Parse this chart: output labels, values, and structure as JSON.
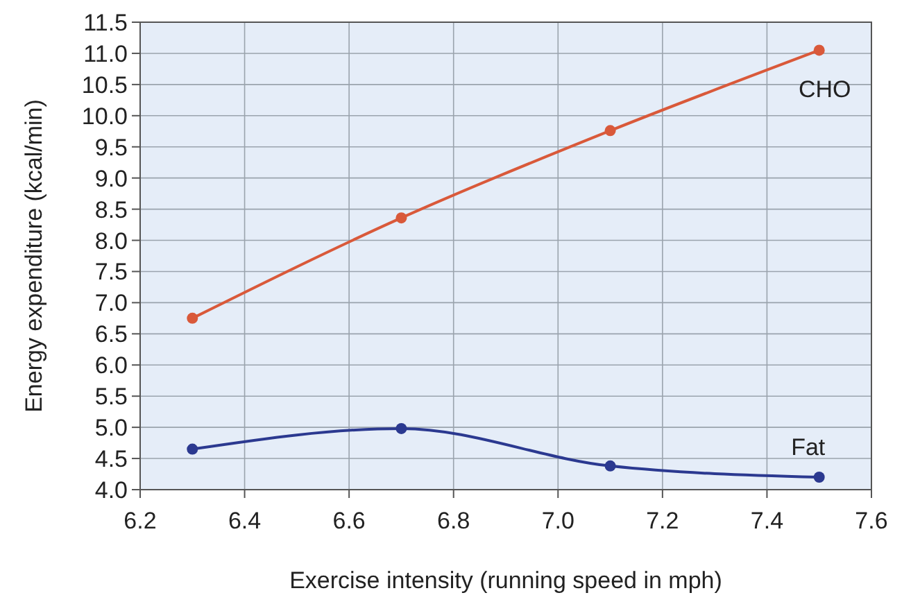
{
  "chart_data": {
    "type": "line",
    "xlabel": "Exercise intensity (running speed in mph)",
    "ylabel": "Energy expenditure (kcal/min)",
    "x": [
      6.3,
      6.7,
      7.1,
      7.5
    ],
    "series": [
      {
        "name": "CHO",
        "color": "#d9593a",
        "values": [
          6.75,
          8.36,
          9.76,
          11.05
        ]
      },
      {
        "name": "Fat",
        "color": "#2b3990",
        "values": [
          4.65,
          4.98,
          4.38,
          4.2
        ]
      }
    ],
    "xlim": [
      6.2,
      7.6
    ],
    "xticks": [
      {
        "value": 6.2,
        "label": "6.2"
      },
      {
        "value": 6.4,
        "label": "6.4"
      },
      {
        "value": 6.6,
        "label": "6.6"
      },
      {
        "value": 6.8,
        "label": "6.8"
      },
      {
        "value": 7.0,
        "label": "7.0"
      },
      {
        "value": 7.2,
        "label": "7.2"
      },
      {
        "value": 7.4,
        "label": "7.4"
      },
      {
        "value": 7.6,
        "label": "7.6"
      }
    ],
    "ylim": [
      4,
      11.5
    ],
    "yticks": [
      {
        "value": 4,
        "label": "4.0"
      },
      {
        "value": 4.5,
        "label": "4.5"
      },
      {
        "value": 5,
        "label": "5.0"
      },
      {
        "value": 5.5,
        "label": "5.5"
      },
      {
        "value": 6,
        "label": "6.0"
      },
      {
        "value": 6.5,
        "label": "6.5"
      },
      {
        "value": 7,
        "label": "7.0"
      },
      {
        "value": 7.5,
        "label": "7.5"
      },
      {
        "value": 8,
        "label": "8.0"
      },
      {
        "value": 8.5,
        "label": "8.5"
      },
      {
        "value": 9,
        "label": "9.0"
      },
      {
        "value": 9.5,
        "label": "9.5"
      },
      {
        "value": 10,
        "label": "10.0"
      },
      {
        "value": 10.5,
        "label": "10.5"
      },
      {
        "value": 11,
        "label": "11.0"
      },
      {
        "value": 11.5,
        "label": "11.5"
      }
    ],
    "grid": true,
    "marker": "circle",
    "line_style": "solid"
  }
}
